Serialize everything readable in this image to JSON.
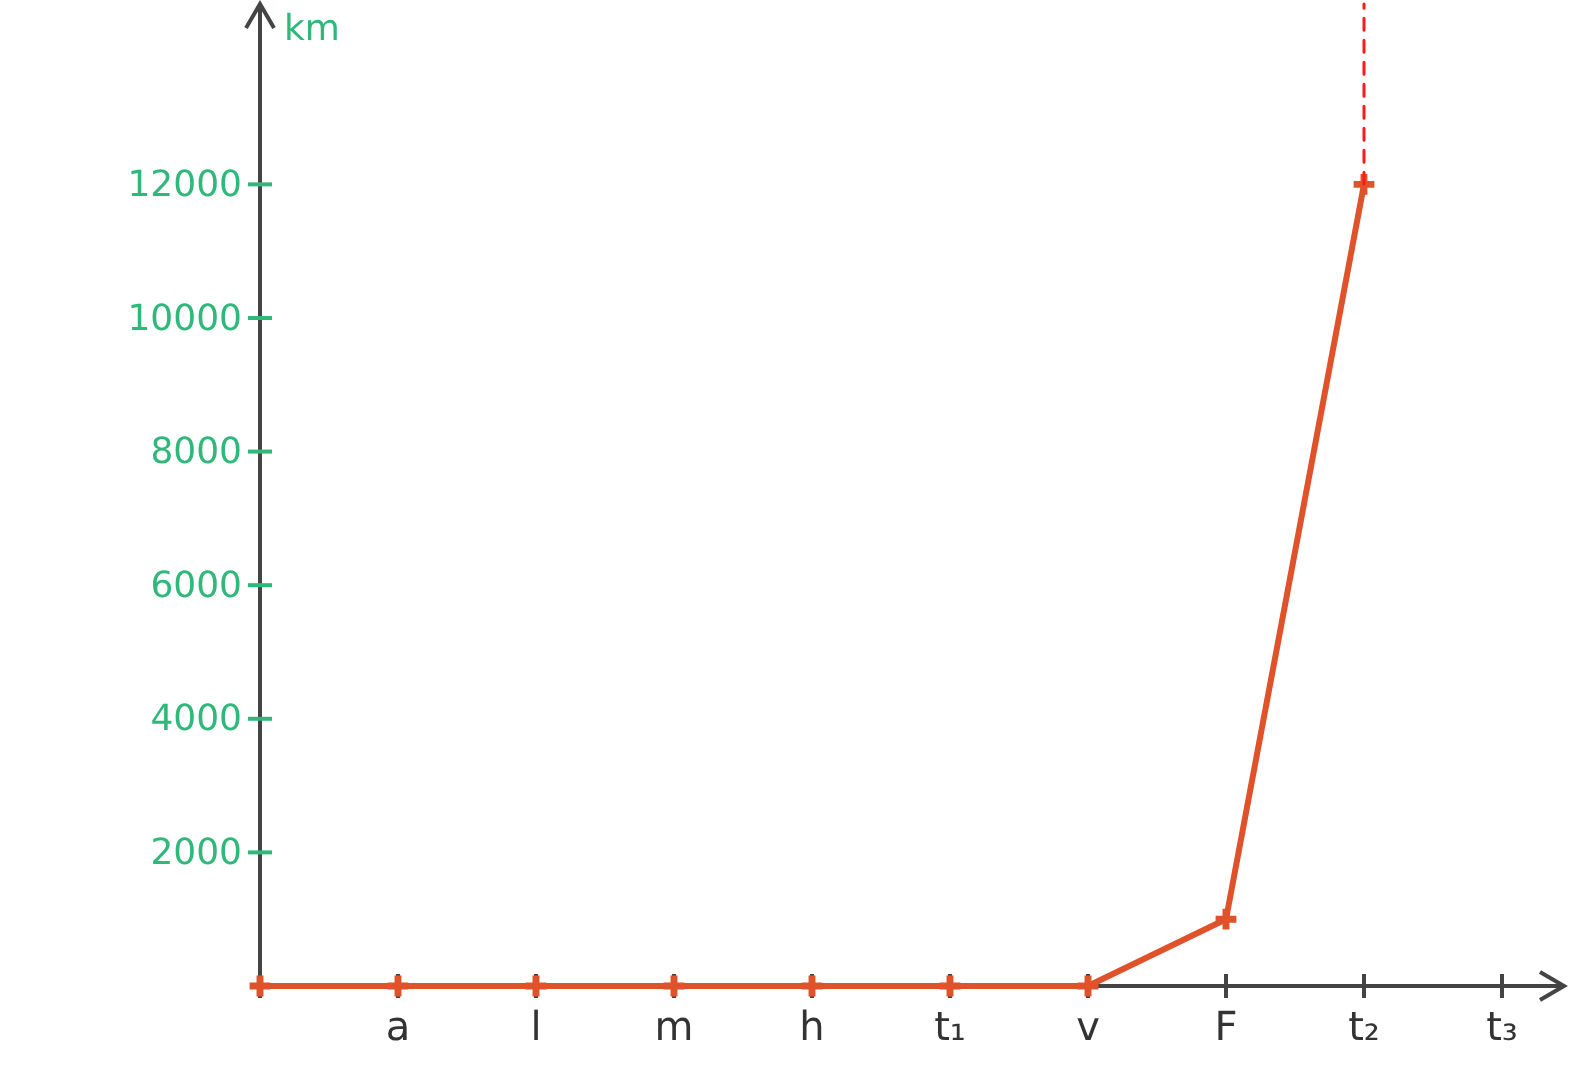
{
  "chart_data": {
    "type": "line",
    "ylabel": "km",
    "categories": [
      null,
      "a",
      "l",
      "m",
      "h",
      "t₁",
      "v",
      "F",
      "t₂",
      "t₃"
    ],
    "series": [
      {
        "color": "#e0522a",
        "values": [
          0,
          0,
          0,
          0,
          0,
          0,
          0,
          1000,
          12000,
          null
        ],
        "marker": "cross",
        "line_style": "solid"
      },
      {
        "color": "#ff1a1a",
        "x": [
          "t₂",
          "t₂"
        ],
        "values": [
          12000,
          14700
        ],
        "marker": "none",
        "line_style": "dashed"
      }
    ],
    "ylim": [
      0,
      14700
    ],
    "yticks": [
      2000,
      4000,
      6000,
      8000,
      10000,
      12000
    ],
    "grid": false
  }
}
